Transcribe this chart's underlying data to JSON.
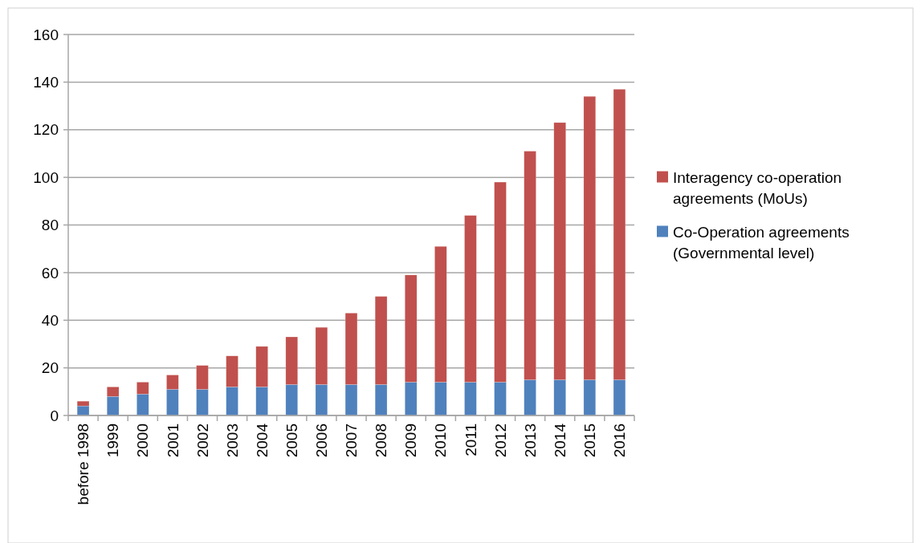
{
  "chart_data": {
    "type": "bar",
    "stacked": true,
    "categories": [
      "before 1998",
      "1999",
      "2000",
      "2001",
      "2002",
      "2003",
      "2004",
      "2005",
      "2006",
      "2007",
      "2008",
      "2009",
      "2010",
      "2011",
      "2012",
      "2013",
      "2014",
      "2015",
      "2016"
    ],
    "series": [
      {
        "name": "Co-Operation agreements (Governmental level)",
        "color": "#4f81bd",
        "values": [
          4,
          8,
          9,
          11,
          11,
          12,
          12,
          13,
          13,
          13,
          13,
          14,
          14,
          14,
          14,
          15,
          15,
          15,
          15
        ]
      },
      {
        "name": "Interagency co-operation agreements (MoUs)",
        "color": "#c0504d",
        "values": [
          2,
          4,
          5,
          6,
          10,
          13,
          17,
          20,
          24,
          30,
          37,
          45,
          57,
          70,
          84,
          96,
          108,
          119,
          122
        ]
      }
    ],
    "ylim": [
      0,
      160
    ],
    "yticks": [
      0,
      20,
      40,
      60,
      80,
      100,
      120,
      140,
      160
    ],
    "grid": "y",
    "legend": "right"
  }
}
